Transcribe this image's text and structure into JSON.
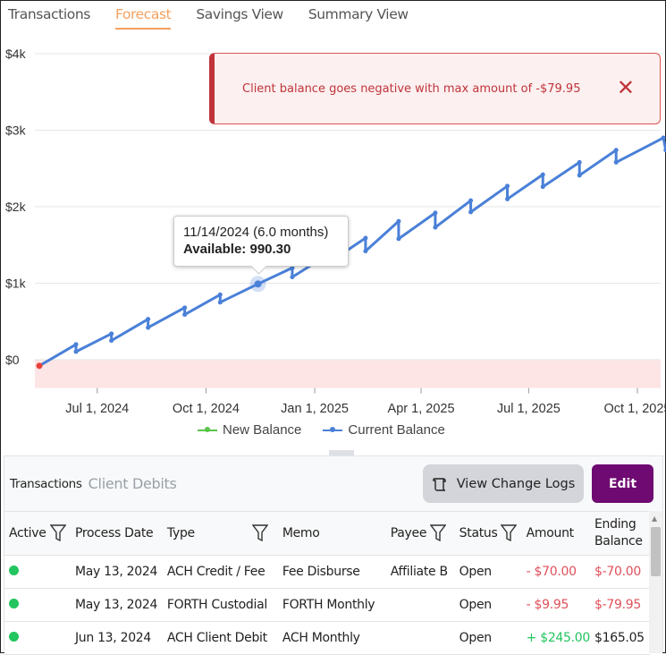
{
  "tabs": [
    {
      "label": "Transactions"
    },
    {
      "label": "Forecast",
      "active": true
    },
    {
      "label": "Savings View"
    },
    {
      "label": "Summary View"
    }
  ],
  "alert": {
    "message": "Client balance goes negative with max amount of -$79.95",
    "close_icon": "x-icon",
    "color": "#c0343a"
  },
  "tooltip": {
    "date": "11/14/2024 (6.0 months)",
    "label": "Available:",
    "value": "990.30"
  },
  "chart_data": {
    "type": "line",
    "y_ticks": [
      "$0",
      "$1k",
      "$2k",
      "$3k",
      "$4k"
    ],
    "y_tick_values": [
      0,
      1000,
      2000,
      3000,
      4000
    ],
    "ylim": [
      -370,
      4000
    ],
    "x_ticks": [
      "Jul 1, 2024",
      "Oct 1, 2024",
      "Jan 1, 2025",
      "Apr 1, 2025",
      "Jul 1, 2025",
      "Oct 1, 2025"
    ],
    "x_tick_dates": [
      "2024-07-01",
      "2024-10-01",
      "2025-01-01",
      "2025-04-01",
      "2025-07-01",
      "2025-10-01"
    ],
    "xlim": [
      "2024-05-10",
      "2025-10-28"
    ],
    "negative_region_color": "#fde5e5",
    "grid": true,
    "legend_position": "bottom",
    "series": [
      {
        "name": "New Balance",
        "color": "#5ac44a",
        "points": [
          [
            "2024-05-13",
            -79.95
          ]
        ],
        "marker_color": "#e8403a"
      },
      {
        "name": "Current Balance",
        "color": "#4a80d8",
        "points": [
          [
            "2024-05-13",
            -79.95
          ],
          [
            "2024-06-13",
            200
          ],
          [
            "2024-06-13",
            105
          ],
          [
            "2024-07-13",
            340
          ],
          [
            "2024-07-13",
            250
          ],
          [
            "2024-08-13",
            530
          ],
          [
            "2024-08-13",
            420
          ],
          [
            "2024-09-13",
            680
          ],
          [
            "2024-09-13",
            590
          ],
          [
            "2024-10-13",
            850
          ],
          [
            "2024-10-13",
            750
          ],
          [
            "2024-11-14",
            990.3
          ],
          [
            "2024-12-13",
            1200
          ],
          [
            "2024-12-13",
            1080
          ],
          [
            "2025-01-13",
            1380
          ],
          [
            "2025-01-13",
            1270
          ],
          [
            "2025-02-13",
            1590
          ],
          [
            "2025-02-13",
            1420
          ],
          [
            "2025-03-13",
            1810
          ],
          [
            "2025-03-13",
            1580
          ],
          [
            "2025-04-13",
            1920
          ],
          [
            "2025-04-13",
            1730
          ],
          [
            "2025-05-13",
            2080
          ],
          [
            "2025-05-13",
            1930
          ],
          [
            "2025-06-13",
            2270
          ],
          [
            "2025-06-13",
            2100
          ],
          [
            "2025-07-13",
            2420
          ],
          [
            "2025-07-13",
            2260
          ],
          [
            "2025-08-13",
            2580
          ],
          [
            "2025-08-13",
            2410
          ],
          [
            "2025-09-13",
            2740
          ],
          [
            "2025-09-13",
            2580
          ],
          [
            "2025-10-23",
            2900
          ],
          [
            "2025-10-25",
            2740
          ]
        ]
      }
    ]
  },
  "legend": [
    {
      "label": "New Balance",
      "color": "#5ac44a"
    },
    {
      "label": "Current Balance",
      "color": "#4a80d8"
    }
  ],
  "panel": {
    "title": "Transactions",
    "subtitle": "Client Debits",
    "log_button": "View Change Logs",
    "log_icon": "scroll-icon",
    "edit_button": "Edit"
  },
  "table": {
    "columns": [
      "Active",
      "Process Date",
      "Type",
      "Memo",
      "Payee",
      "Status",
      "Amount",
      "Ending Balance"
    ],
    "rows": [
      {
        "active": true,
        "date": "May 13, 2024",
        "type": "ACH Credit / Fee",
        "memo": "Fee Disburse",
        "payee": "Affiliate B",
        "status": "Open",
        "amount": "- $70.00",
        "balance": "$-70.00"
      },
      {
        "active": true,
        "date": "May 13, 2024",
        "type": "FORTH Custodial",
        "memo": "FORTH Monthly",
        "payee": "",
        "status": "Open",
        "amount": "- $9.95",
        "balance": "$-79.95"
      },
      {
        "active": true,
        "date": "Jun 13, 2024",
        "type": "ACH Client Debit",
        "memo": "ACH Monthly",
        "payee": "",
        "status": "Open",
        "amount": "+ $245.00",
        "balance": "$165.05"
      }
    ]
  }
}
